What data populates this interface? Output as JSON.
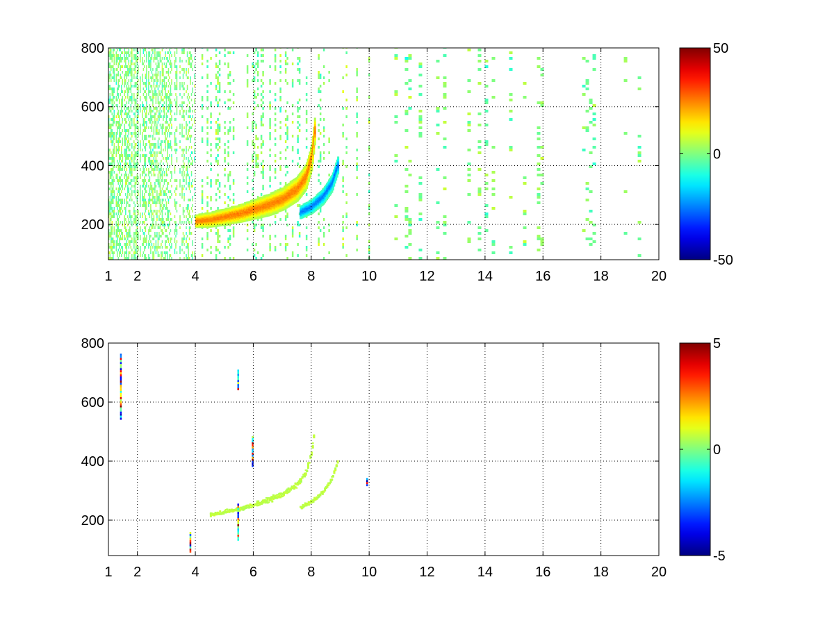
{
  "chart_data": [
    {
      "type": "heatmap",
      "title": "",
      "xlabel": "",
      "ylabel": "",
      "xlim": [
        1,
        20
      ],
      "ylim": [
        80,
        800
      ],
      "x_ticks": [
        1,
        2,
        4,
        6,
        8,
        10,
        12,
        14,
        16,
        18,
        20
      ],
      "y_ticks": [
        200,
        400,
        600,
        800
      ],
      "grid": true,
      "colormap": "jet",
      "colorbar": {
        "min": -50,
        "max": 50,
        "ticks": [
          50,
          0,
          -50
        ]
      },
      "features": {
        "ridge_positive": {
          "x": [
            4,
            4.5,
            5,
            5.5,
            6,
            6.5,
            7,
            7.5,
            7.8,
            8.0,
            8.1
          ],
          "y": [
            210,
            215,
            225,
            235,
            250,
            265,
            285,
            320,
            360,
            430,
            520
          ],
          "value": 25
        },
        "ridge_negative": {
          "x": [
            7.6,
            8.0,
            8.4,
            8.7,
            8.9
          ],
          "y": [
            240,
            260,
            295,
            340,
            400
          ],
          "value": -25
        },
        "noise_density_x": [
          1,
          4,
          10,
          20
        ],
        "noise_density": [
          0.6,
          0.35,
          0.22,
          0.12
        ]
      }
    },
    {
      "type": "heatmap",
      "title": "",
      "xlabel": "",
      "ylabel": "",
      "xlim": [
        1,
        20
      ],
      "ylim": [
        80,
        800
      ],
      "x_ticks": [
        1,
        2,
        4,
        6,
        8,
        10,
        12,
        14,
        16,
        18,
        20
      ],
      "y_ticks": [
        200,
        400,
        600,
        800
      ],
      "grid": true,
      "colormap": "jet",
      "colorbar": {
        "min": -5,
        "max": 5,
        "ticks": [
          5,
          0,
          -5
        ]
      },
      "features": {
        "ridge_main": {
          "x": [
            4.5,
            5,
            5.5,
            6,
            6.5,
            7,
            7.5,
            7.8,
            8.0,
            8.1
          ],
          "y": [
            215,
            225,
            235,
            250,
            265,
            285,
            320,
            360,
            430,
            520
          ],
          "value": 0.6
        },
        "ridge_second": {
          "x": [
            7.6,
            8.0,
            8.4,
            8.7,
            8.9
          ],
          "y": [
            240,
            260,
            295,
            340,
            400
          ],
          "value": 0.6
        },
        "vertical_streaks": [
          {
            "x": 1.4,
            "y0": 540,
            "y1": 760
          },
          {
            "x": 3.8,
            "y0": 90,
            "y1": 160
          },
          {
            "x": 5.45,
            "y0": 130,
            "y1": 250
          },
          {
            "x": 5.45,
            "y0": 640,
            "y1": 710
          },
          {
            "x": 5.95,
            "y0": 380,
            "y1": 480
          },
          {
            "x": 9.9,
            "y0": 315,
            "y1": 340
          }
        ]
      }
    }
  ]
}
